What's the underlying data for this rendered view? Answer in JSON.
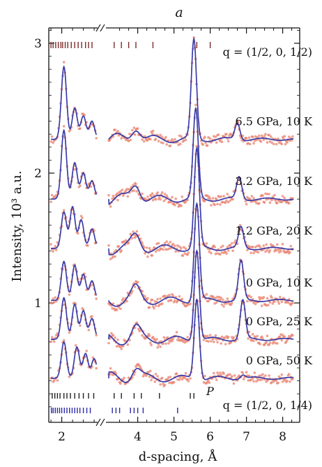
{
  "chart_data": {
    "type": "line",
    "panel_label": "a",
    "xlabel": "d-spacing, Å",
    "ylabel": "Intensity, 10³ a.u.",
    "x_ticks": [
      "2",
      "4",
      "5",
      "6",
      "7",
      "8"
    ],
    "y_ticks": [
      "1",
      "2",
      "3"
    ],
    "xlim": [
      1.7,
      8.4
    ],
    "x_break": [
      2.8,
      3.2
    ],
    "ylim": [
      0.0,
      3.15
    ],
    "top_tick_label": "q = (1/2, 0, 1/2)",
    "bottom_tick_label": "q = (1/2, 0, 1/4)",
    "phase_label": "P",
    "series": [
      {
        "name": "0 GPa, 50 K",
        "baseline": 0.42,
        "peaks": [
          [
            2.05,
            0.28
          ],
          [
            2.35,
            0.24
          ],
          [
            2.55,
            0.19
          ],
          [
            2.75,
            0.15
          ],
          [
            3.95,
            0.08
          ],
          [
            5.63,
            0.62
          ],
          [
            6.9,
            0.03
          ]
        ]
      },
      {
        "name": "0 GPa, 25 K",
        "baseline": 0.72,
        "peaks": [
          [
            2.05,
            0.32
          ],
          [
            2.3,
            0.27
          ],
          [
            2.5,
            0.22
          ],
          [
            2.7,
            0.16
          ],
          [
            3.95,
            0.09
          ],
          [
            5.63,
            0.7
          ],
          [
            6.9,
            0.3
          ]
        ]
      },
      {
        "name": "0 GPa, 10 K",
        "baseline": 1.02,
        "peaks": [
          [
            2.05,
            0.3
          ],
          [
            2.3,
            0.27
          ],
          [
            2.5,
            0.2
          ],
          [
            2.7,
            0.15
          ],
          [
            3.95,
            0.09
          ],
          [
            5.63,
            0.75
          ],
          [
            6.85,
            0.3
          ]
        ]
      },
      {
        "name": "1.2 GPa, 20 K",
        "baseline": 1.42,
        "peaks": [
          [
            2.05,
            0.28
          ],
          [
            2.25,
            0.32
          ],
          [
            2.45,
            0.22
          ],
          [
            2.7,
            0.15
          ],
          [
            3.95,
            0.1
          ],
          [
            5.63,
            0.76
          ],
          [
            6.85,
            0.16
          ]
        ]
      },
      {
        "name": "3.2 GPa, 10 K",
        "baseline": 1.8,
        "peaks": [
          [
            2.05,
            0.53
          ],
          [
            2.3,
            0.28
          ],
          [
            2.5,
            0.2
          ],
          [
            2.7,
            0.14
          ],
          [
            3.95,
            0.12
          ],
          [
            5.6,
            0.68
          ],
          [
            6.8,
            0.17
          ]
        ]
      },
      {
        "name": "6.5 GPa, 10 K",
        "baseline": 2.26,
        "peaks": [
          [
            2.05,
            0.56
          ],
          [
            2.3,
            0.24
          ],
          [
            2.5,
            0.18
          ],
          [
            2.7,
            0.14
          ],
          [
            3.95,
            0.1
          ],
          [
            5.55,
            0.76
          ],
          [
            6.75,
            0.13
          ]
        ]
      }
    ],
    "colors": {
      "fit": "#3a3ca8",
      "data": "#e8826e",
      "ticks_top": "#7a2a2a",
      "ticks_bottom": "#2a2aa8"
    }
  }
}
